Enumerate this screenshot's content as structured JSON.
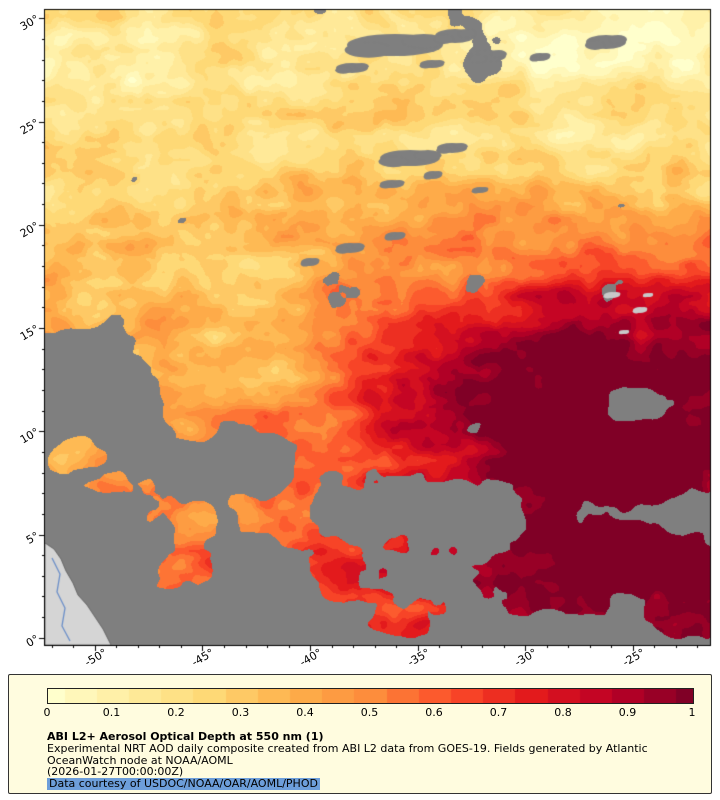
{
  "map": {
    "y_axis_ticks": [
      "30°",
      "25°",
      "20°",
      "15°",
      "10°",
      "5°",
      "0°"
    ],
    "x_axis_ticks": [
      "-50°",
      "-45°",
      "-40°",
      "-35°",
      "-30°",
      "-25°"
    ]
  },
  "colorbar": {
    "min": 0,
    "max": 1,
    "tick_labels": [
      "0",
      "0.1",
      "0.2",
      "0.3",
      "0.4",
      "0.5",
      "0.6",
      "0.7",
      "0.8",
      "0.9",
      "1"
    ],
    "colormap_stops": [
      "#ffffcc",
      "#ffeda0",
      "#fed976",
      "#feb24c",
      "#fd8d3c",
      "#fc4e2a",
      "#e31a1c",
      "#bd0026",
      "#800026"
    ]
  },
  "legend": {
    "panel_background": "#fffcdf",
    "title": "ABI L2+ Aerosol Optical Depth at 550 nm (1)",
    "description_line1": "Experimental NRT AOD daily composite created from ABI L2 data from GOES-19. Fields generated by Atlantic",
    "description_line2": "OceanWatch node at NOAA/AOML",
    "timestamp": "(2026-01-27T00:00:00Z)",
    "courtesy": "Data courtesy of USDOC/NOAA/OAR/AOML/PHOD",
    "courtesy_highlight": "#6d9eda"
  },
  "map_colors": {
    "no_data_gray": "#7f7f7f",
    "cloud_light": "#c9c9c9",
    "land_fill": "#d5d5d5",
    "coast_stroke": "#5a5a5a",
    "river_blue": "#6b8fc9"
  }
}
